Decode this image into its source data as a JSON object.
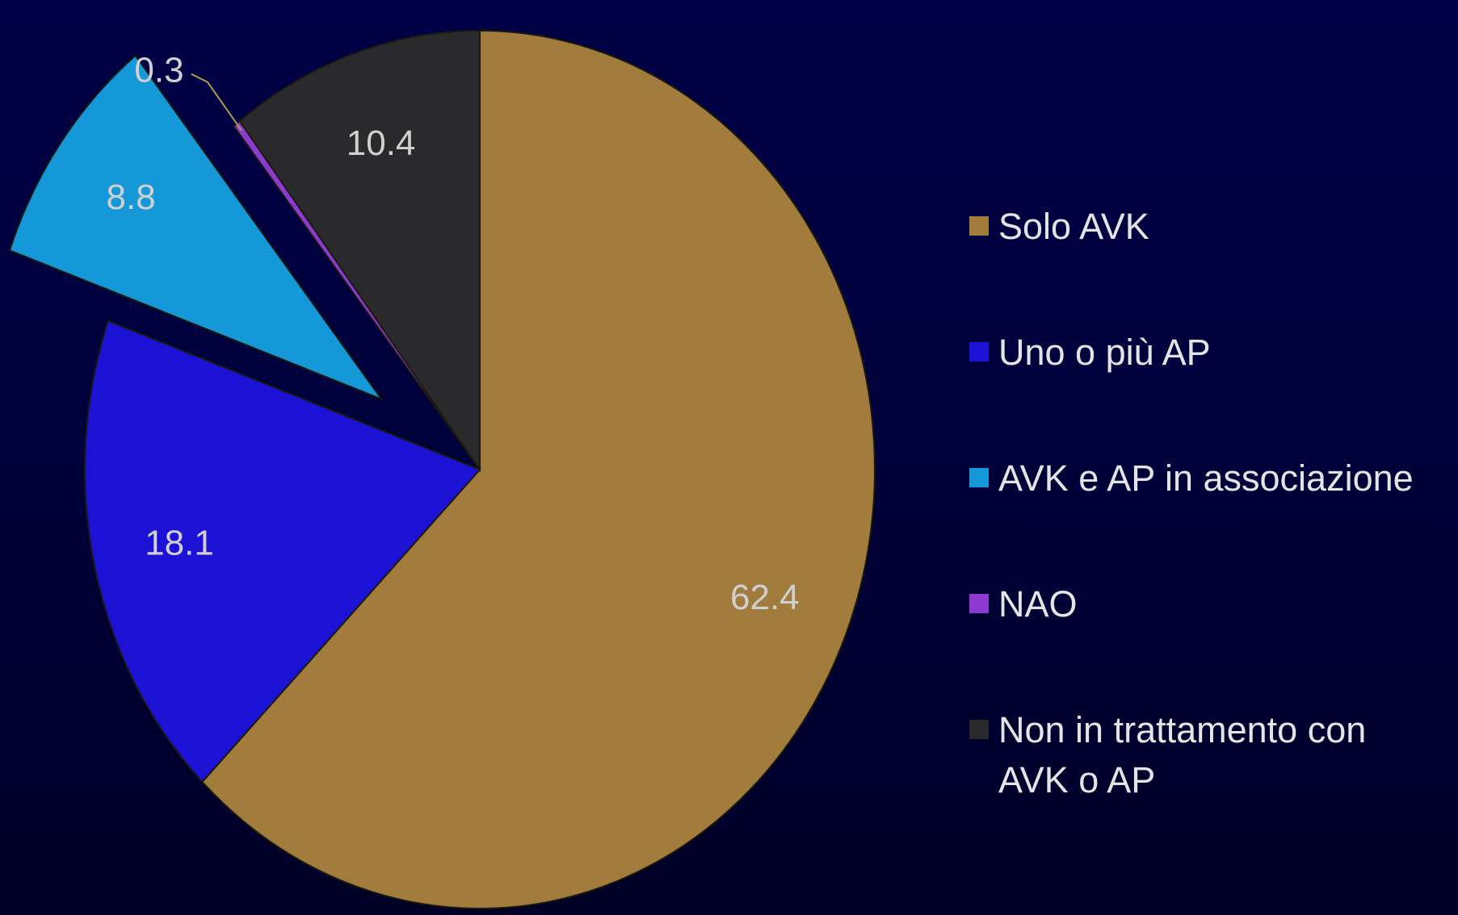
{
  "chart_data": {
    "type": "pie",
    "categories": [
      "Solo AVK",
      "Uno o più AP",
      "AVK e AP in associazione",
      "NAO",
      "Non in trattamento con AVK o AP"
    ],
    "values": [
      62.4,
      18.1,
      8.8,
      0.3,
      10.4
    ],
    "colors": [
      "#a27c3c",
      "#1c12d6",
      "#1598d8",
      "#8c3ad2",
      "#2a2a2c"
    ],
    "exploded": [
      false,
      false,
      true,
      false,
      false
    ],
    "legend": "right"
  }
}
